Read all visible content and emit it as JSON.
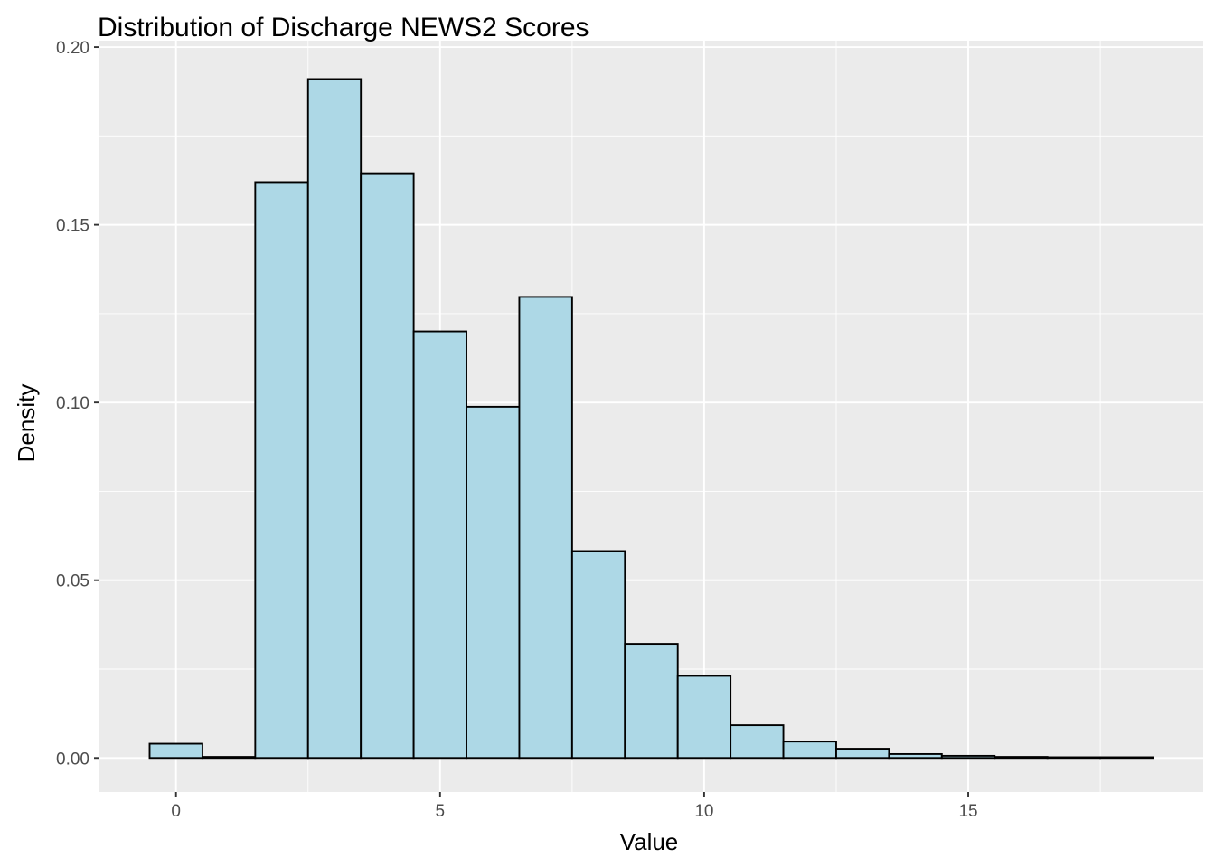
{
  "chart_data": {
    "type": "bar",
    "title": "Distribution of Discharge NEWS2 Scores",
    "xlabel": "Value",
    "ylabel": "Density",
    "xlim": [
      -1.45,
      19.45
    ],
    "ylim": [
      -0.0096,
      0.2018
    ],
    "x_ticks": [
      0,
      5,
      10,
      15
    ],
    "x_tick_labels": [
      "0",
      "5",
      "10",
      "15"
    ],
    "y_ticks": [
      0,
      0.05,
      0.1,
      0.15,
      0.2
    ],
    "y_tick_labels": [
      "0.00",
      "0.05",
      "0.10",
      "0.15",
      "0.20"
    ],
    "bin_width": 1,
    "x": [
      0,
      1,
      2,
      3,
      4,
      5,
      6,
      7,
      8,
      9,
      10,
      11,
      12,
      13,
      14,
      15,
      16,
      17,
      18
    ],
    "values": [
      0.004,
      0.0003,
      0.162,
      0.191,
      0.1645,
      0.12,
      0.0988,
      0.1297,
      0.0582,
      0.0321,
      0.0231,
      0.0092,
      0.0046,
      0.0026,
      0.0011,
      0.0006,
      0.0003,
      0.0002,
      0.0002
    ],
    "grid": true,
    "legend": "none",
    "colors": {
      "panel_background": "#ebebeb",
      "grid_major": "#ffffff",
      "bar_fill": "#add8e6",
      "bar_outline": "#000000",
      "tick_text": "#4d4d4d",
      "text": "#000000"
    }
  }
}
